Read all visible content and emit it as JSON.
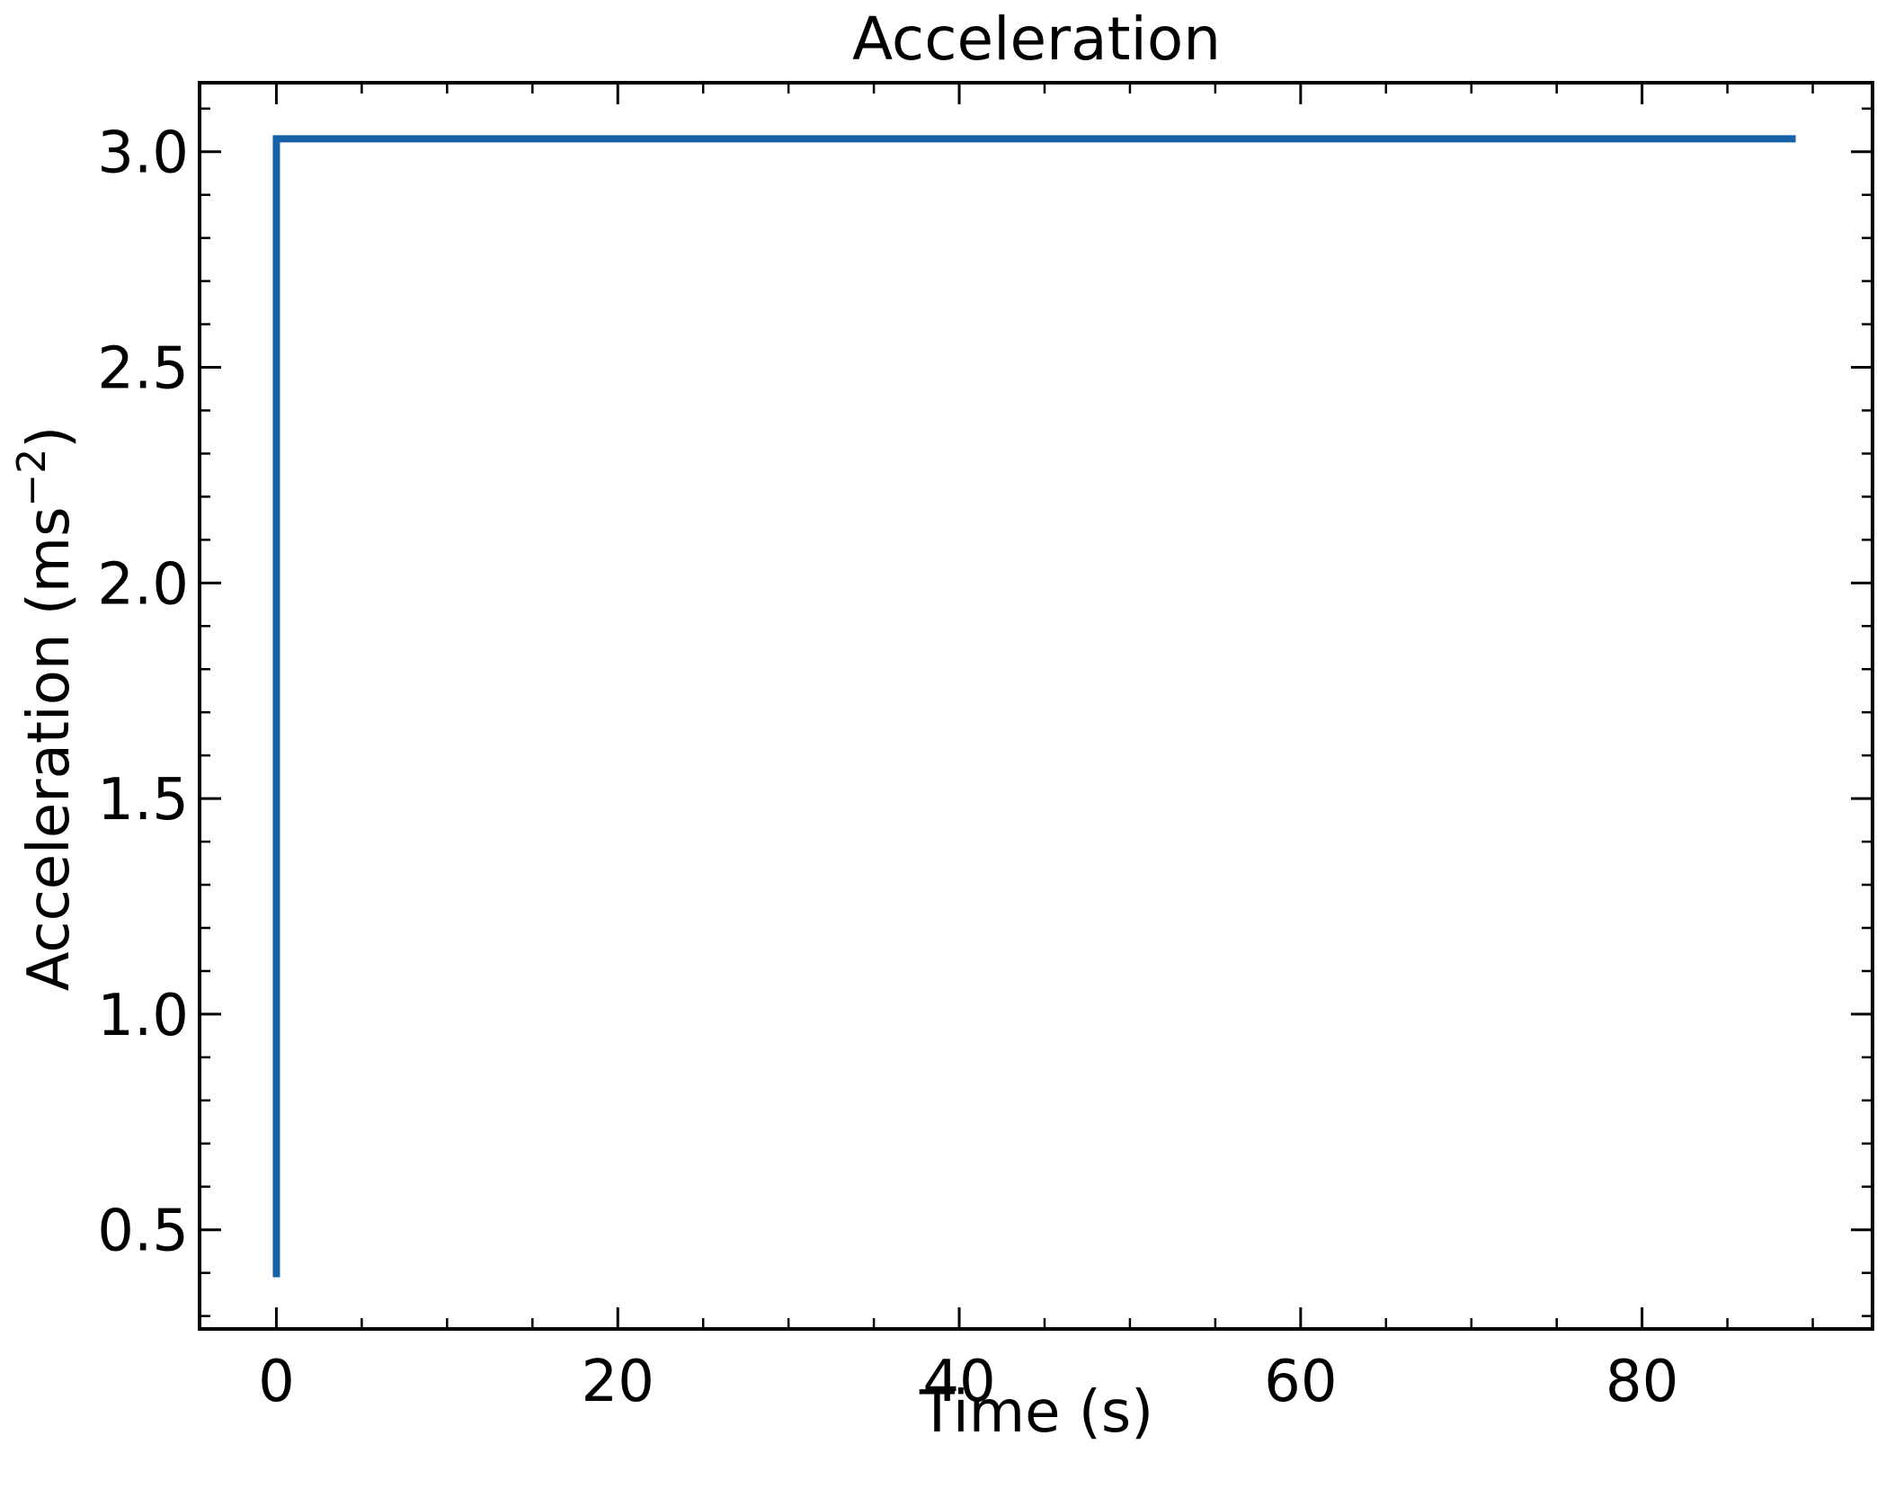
{
  "chart_data": {
    "type": "line",
    "title": "Acceleration",
    "xlabel": "Time (s)",
    "ylabel": "Acceleration (ms",
    "ylabel_superscript": "−2",
    "ylabel_suffix": ")",
    "xlim": [
      -4.5,
      93.5
    ],
    "ylim": [
      0.27,
      3.16
    ],
    "x_ticks": [
      0,
      20,
      40,
      60,
      80
    ],
    "x_tick_labels": [
      "0",
      "20",
      "40",
      "60",
      "80"
    ],
    "y_ticks": [
      0.5,
      1.0,
      1.5,
      2.0,
      2.5,
      3.0
    ],
    "y_tick_labels": [
      "0.5",
      "1.0",
      "1.5",
      "2.0",
      "2.5",
      "3.0"
    ],
    "x_minor_step": 5,
    "y_minor_step": 0.1,
    "grid": false,
    "series": [
      {
        "color": "#1761a8",
        "x": [
          0,
          0,
          89
        ],
        "y": [
          0.39,
          3.03,
          3.03
        ]
      }
    ]
  }
}
